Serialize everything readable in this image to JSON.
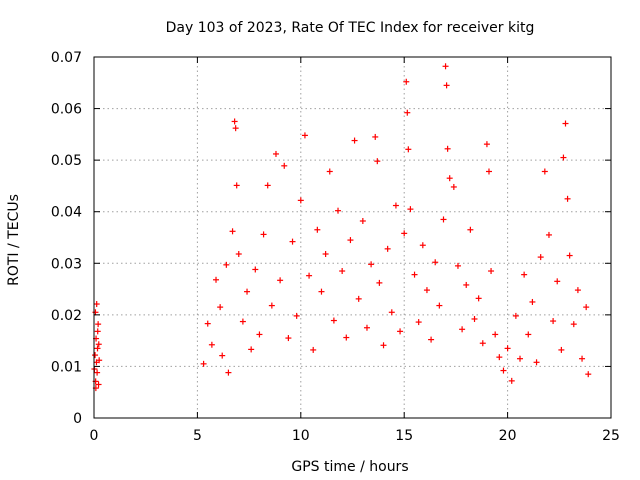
{
  "chart_data": {
    "type": "scatter",
    "title": "Day 103 of 2023, Rate Of TEC Index for receiver kitg",
    "xlabel": "GPS time / hours",
    "ylabel": "ROTI / TECUs",
    "xlim": [
      0,
      25
    ],
    "ylim": [
      0,
      0.07
    ],
    "xticks": [
      0,
      5,
      10,
      15,
      20,
      25
    ],
    "xtick_labels": [
      "0",
      "5",
      "10",
      "15",
      "20",
      "25"
    ],
    "yticks": [
      0,
      0.01,
      0.02,
      0.03,
      0.04,
      0.05,
      0.06,
      0.07
    ],
    "ytick_labels": [
      "0",
      "0.01",
      "0.02",
      "0.03",
      "0.04",
      "0.05",
      "0.06",
      "0.07"
    ],
    "grid": true,
    "marker": "+",
    "color": "#ff0000",
    "series": [
      {
        "name": "ROTI",
        "points": [
          [
            0.02,
            0.0095
          ],
          [
            0.05,
            0.0122
          ],
          [
            0.08,
            0.0071
          ],
          [
            0.1,
            0.0154
          ],
          [
            0.12,
            0.0108
          ],
          [
            0.15,
            0.0088
          ],
          [
            0.17,
            0.0135
          ],
          [
            0.2,
            0.0182
          ],
          [
            0.22,
            0.0065
          ],
          [
            0.25,
            0.0112
          ],
          [
            0.07,
            0.0205
          ],
          [
            0.13,
            0.0221
          ],
          [
            0.18,
            0.0168
          ],
          [
            0.23,
            0.0143
          ],
          [
            0.09,
            0.0058
          ],
          [
            5.3,
            0.0105
          ],
          [
            5.5,
            0.0183
          ],
          [
            5.7,
            0.0142
          ],
          [
            5.9,
            0.0268
          ],
          [
            6.1,
            0.0215
          ],
          [
            6.2,
            0.0121
          ],
          [
            6.4,
            0.0297
          ],
          [
            6.5,
            0.0088
          ],
          [
            6.7,
            0.0362
          ],
          [
            6.8,
            0.0575
          ],
          [
            6.85,
            0.0562
          ],
          [
            6.9,
            0.0451
          ],
          [
            7.0,
            0.0318
          ],
          [
            7.2,
            0.0187
          ],
          [
            7.4,
            0.0245
          ],
          [
            7.6,
            0.0133
          ],
          [
            7.8,
            0.0288
          ],
          [
            8.0,
            0.0162
          ],
          [
            8.2,
            0.0356
          ],
          [
            8.4,
            0.0451
          ],
          [
            8.6,
            0.0218
          ],
          [
            8.8,
            0.0512
          ],
          [
            9.0,
            0.0267
          ],
          [
            9.2,
            0.0489
          ],
          [
            9.4,
            0.0155
          ],
          [
            9.6,
            0.0342
          ],
          [
            9.8,
            0.0198
          ],
          [
            10.0,
            0.0422
          ],
          [
            10.2,
            0.0548
          ],
          [
            10.4,
            0.0276
          ],
          [
            10.6,
            0.0132
          ],
          [
            10.8,
            0.0365
          ],
          [
            11.0,
            0.0245
          ],
          [
            11.2,
            0.0318
          ],
          [
            11.4,
            0.0478
          ],
          [
            11.6,
            0.0189
          ],
          [
            11.8,
            0.0402
          ],
          [
            12.0,
            0.0285
          ],
          [
            12.2,
            0.0156
          ],
          [
            12.4,
            0.0345
          ],
          [
            12.6,
            0.0538
          ],
          [
            12.8,
            0.0231
          ],
          [
            13.0,
            0.0382
          ],
          [
            13.2,
            0.0175
          ],
          [
            13.4,
            0.0298
          ],
          [
            13.6,
            0.0545
          ],
          [
            13.7,
            0.0498
          ],
          [
            13.8,
            0.0262
          ],
          [
            14.0,
            0.0141
          ],
          [
            14.2,
            0.0328
          ],
          [
            14.4,
            0.0205
          ],
          [
            14.6,
            0.0412
          ],
          [
            14.8,
            0.0168
          ],
          [
            15.0,
            0.0358
          ],
          [
            15.1,
            0.0652
          ],
          [
            15.15,
            0.0592
          ],
          [
            15.2,
            0.0521
          ],
          [
            15.3,
            0.0405
          ],
          [
            15.5,
            0.0278
          ],
          [
            15.7,
            0.0186
          ],
          [
            15.9,
            0.0335
          ],
          [
            16.1,
            0.0248
          ],
          [
            16.3,
            0.0152
          ],
          [
            16.5,
            0.0302
          ],
          [
            16.7,
            0.0218
          ],
          [
            16.9,
            0.0385
          ],
          [
            17.0,
            0.0682
          ],
          [
            17.05,
            0.0645
          ],
          [
            17.1,
            0.0522
          ],
          [
            17.2,
            0.0465
          ],
          [
            17.4,
            0.0448
          ],
          [
            17.6,
            0.0295
          ],
          [
            17.8,
            0.0172
          ],
          [
            18.0,
            0.0258
          ],
          [
            18.2,
            0.0365
          ],
          [
            18.4,
            0.0192
          ],
          [
            18.6,
            0.0232
          ],
          [
            18.8,
            0.0145
          ],
          [
            19.0,
            0.0531
          ],
          [
            19.1,
            0.0478
          ],
          [
            19.2,
            0.0285
          ],
          [
            19.4,
            0.0162
          ],
          [
            19.6,
            0.0118
          ],
          [
            19.8,
            0.0092
          ],
          [
            20.0,
            0.0135
          ],
          [
            20.2,
            0.0072
          ],
          [
            20.4,
            0.0198
          ],
          [
            20.6,
            0.0115
          ],
          [
            20.8,
            0.0278
          ],
          [
            21.0,
            0.0162
          ],
          [
            21.2,
            0.0225
          ],
          [
            21.4,
            0.0108
          ],
          [
            21.6,
            0.0312
          ],
          [
            21.8,
            0.0478
          ],
          [
            22.0,
            0.0355
          ],
          [
            22.2,
            0.0188
          ],
          [
            22.4,
            0.0265
          ],
          [
            22.6,
            0.0132
          ],
          [
            22.7,
            0.0505
          ],
          [
            22.8,
            0.0571
          ],
          [
            22.9,
            0.0425
          ],
          [
            23.0,
            0.0315
          ],
          [
            23.2,
            0.0182
          ],
          [
            23.4,
            0.0248
          ],
          [
            23.6,
            0.0115
          ],
          [
            23.8,
            0.0215
          ],
          [
            23.9,
            0.0085
          ]
        ]
      }
    ]
  }
}
